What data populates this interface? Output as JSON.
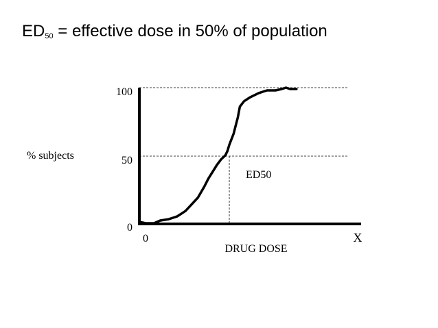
{
  "slide": {
    "title_main": "ED",
    "title_sub": "50",
    "title_rest": " = effective dose in 50% of population"
  },
  "chart_data": {
    "type": "line",
    "title": "",
    "xlabel": "DRUG DOSE",
    "ylabel": "% subjects",
    "x_tick_labels": [
      "0",
      "X"
    ],
    "y_ticks": [
      0,
      50,
      100
    ],
    "y_tick_labels": [
      "0",
      "50",
      "100"
    ],
    "xlim": [
      0,
      1
    ],
    "ylim": [
      0,
      100
    ],
    "grid": "dashed lines at y=50 and y=100",
    "annotation": "ED50",
    "ed50_x": 0.42,
    "series": [
      {
        "x": [
          0,
          0.03,
          0.07,
          0.1,
          0.14,
          0.18,
          0.22,
          0.25,
          0.28,
          0.31,
          0.33,
          0.35,
          0.37,
          0.39,
          0.41,
          0.42,
          0.43,
          0.45,
          0.46,
          0.47,
          0.48,
          0.5,
          0.53,
          0.57,
          0.61,
          0.65,
          0.68,
          0.7,
          0.72,
          0.75
        ],
        "y": [
          1,
          0,
          0,
          2,
          3,
          5,
          9,
          14,
          19,
          27,
          33,
          38,
          43,
          47,
          50,
          53,
          58,
          66,
          72,
          78,
          86,
          90,
          93,
          96,
          98,
          98,
          99,
          100,
          99,
          99
        ]
      }
    ]
  }
}
